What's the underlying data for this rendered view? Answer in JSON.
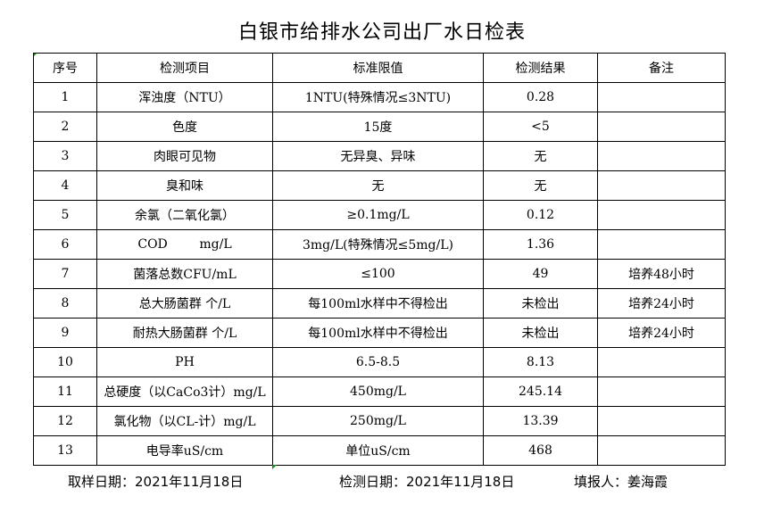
{
  "title": "白银市给排水公司出厂水日检表",
  "headers": [
    "序号",
    "检测项目",
    "标准限值",
    "检测结果",
    "备注"
  ],
  "rows": [
    [
      "1",
      "浑浊度（NTU）",
      "1NTU(特殊情况≤3NTU)",
      "0.28",
      ""
    ],
    [
      "2",
      "色度",
      "15度",
      "<5",
      ""
    ],
    [
      "3",
      "肉眼可见物",
      "无异臭、异味",
      "无",
      ""
    ],
    [
      "4",
      "臭和味",
      "无",
      "无",
      ""
    ],
    [
      "5",
      "余氯（二氧化氯）",
      "≥0.1mg/L",
      "0.12",
      ""
    ],
    [
      "6",
      "COD        mg/L",
      "3mg/L(特殊情况≤5mg/L)",
      "1.36",
      ""
    ],
    [
      "7",
      "菌落总数CFU/mL",
      "≤100",
      "49",
      "培养48小时"
    ],
    [
      "8",
      "总大肠菌群 个/L",
      "每100ml水样中不得检出",
      "未检出",
      "培养24小时"
    ],
    [
      "9",
      "耐热大肠菌群 个/L",
      "每100ml水样中不得检出",
      "未检出",
      "培养24小时"
    ],
    [
      "10",
      "PH",
      "6.5-8.5",
      "8.13",
      ""
    ],
    [
      "11",
      "总硬度（以CaCo3计）mg/L",
      "450mg/L",
      "245.14",
      ""
    ],
    [
      "12",
      "氯化物（以CL-计）mg/L",
      "250mg/L",
      "13.39",
      ""
    ],
    [
      "13",
      "电导率uS/cm",
      "单位uS/cm",
      "468",
      ""
    ]
  ],
  "footer": {
    "sample_date": "取样日期：2021年11月18日",
    "test_date": "检测日期：2021年11月18日",
    "reporter": "填报人：姜海霞"
  }
}
